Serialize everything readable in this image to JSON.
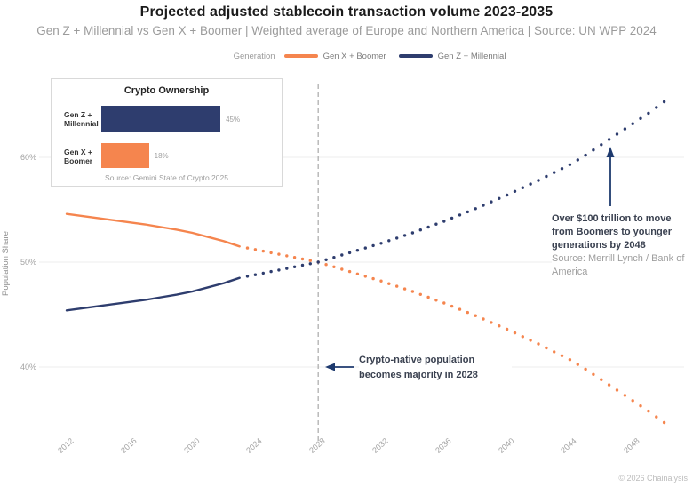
{
  "header": {
    "title": "Projected adjusted stablecoin transaction volume 2023-2035",
    "subtitle": "Gen Z + Millennial vs Gen X + Boomer | Weighted average of Europe and Northern America | Source: UN WPP 2024"
  },
  "legend": {
    "title": "Generation",
    "items": [
      {
        "label": "Gen X + Boomer",
        "color": "#f5854e"
      },
      {
        "label": "Gen Z + Millennial",
        "color": "#2e3d6e"
      }
    ]
  },
  "inset": {
    "title": "Crypto Ownership",
    "source": "Source: Gemini State of Crypto 2025",
    "bars": [
      {
        "label_lines": [
          "Gen Z +",
          "Millennial"
        ],
        "value": 45,
        "display": "45%",
        "color": "#2e3d6e"
      },
      {
        "label_lines": [
          "Gen X +",
          "Boomer"
        ],
        "value": 18,
        "display": "18%",
        "color": "#f5854e"
      }
    ]
  },
  "annotations": {
    "wealth_transfer": {
      "text": "Over $100 trillion to move from Boomers to younger generations by 2048",
      "source": "Source: Merrill Lynch / Bank of America"
    },
    "majority": {
      "text": "Crypto-native population becomes majority in 2028",
      "year": 2028
    }
  },
  "footer": {
    "copyright": "© 2026 Chainalysis"
  },
  "chart_data": {
    "type": "line",
    "title": "Projected adjusted stablecoin transaction volume 2023-2035",
    "ylabel": "Population Share",
    "xlabel": "",
    "grid": true,
    "legend_position": "top",
    "xlim": [
      2012,
      2050
    ],
    "ylim": [
      34,
      66
    ],
    "xticks": [
      "2012",
      "2016",
      "2020",
      "2024",
      "2028",
      "2032",
      "2036",
      "2040",
      "2044",
      "2048"
    ],
    "yticks": [
      {
        "value": 40,
        "label": "40%"
      },
      {
        "value": 50,
        "label": "50%"
      },
      {
        "value": 60,
        "label": "60%"
      }
    ],
    "x": [
      2012,
      2013,
      2014,
      2015,
      2016,
      2017,
      2018,
      2019,
      2020,
      2021,
      2022,
      2023,
      2024,
      2025,
      2026,
      2027,
      2028,
      2029,
      2030,
      2031,
      2032,
      2033,
      2034,
      2035,
      2036,
      2037,
      2038,
      2039,
      2040,
      2041,
      2042,
      2043,
      2044,
      2045,
      2046,
      2047,
      2048,
      2049,
      2050
    ],
    "series": [
      {
        "name": "Gen X + Boomer",
        "color": "#f5854e",
        "values": [
          54.6,
          54.4,
          54.2,
          54.0,
          53.8,
          53.6,
          53.35,
          53.1,
          52.8,
          52.4,
          52.0,
          51.5,
          51.2,
          50.9,
          50.6,
          50.3,
          50.0,
          49.55,
          49.1,
          48.65,
          48.2,
          47.7,
          47.2,
          46.65,
          46.1,
          45.5,
          44.9,
          44.25,
          43.6,
          42.9,
          42.2,
          41.45,
          40.7,
          39.8,
          38.8,
          37.8,
          36.8,
          35.8,
          34.7
        ]
      },
      {
        "name": "Gen Z + Millennial",
        "color": "#2e3d6e",
        "values": [
          45.4,
          45.6,
          45.8,
          46.0,
          46.2,
          46.4,
          46.65,
          46.9,
          47.2,
          47.6,
          48.0,
          48.5,
          48.8,
          49.1,
          49.4,
          49.7,
          50.0,
          50.45,
          50.9,
          51.35,
          51.8,
          52.3,
          52.8,
          53.35,
          53.9,
          54.5,
          55.1,
          55.75,
          56.4,
          57.1,
          57.8,
          58.55,
          59.3,
          60.2,
          61.2,
          62.2,
          63.2,
          64.2,
          65.3
        ]
      }
    ],
    "solid_until_year": 2023,
    "projection_style": "dotted",
    "crossover": {
      "year": 2028,
      "value": 50
    },
    "vline_year": 2028
  }
}
